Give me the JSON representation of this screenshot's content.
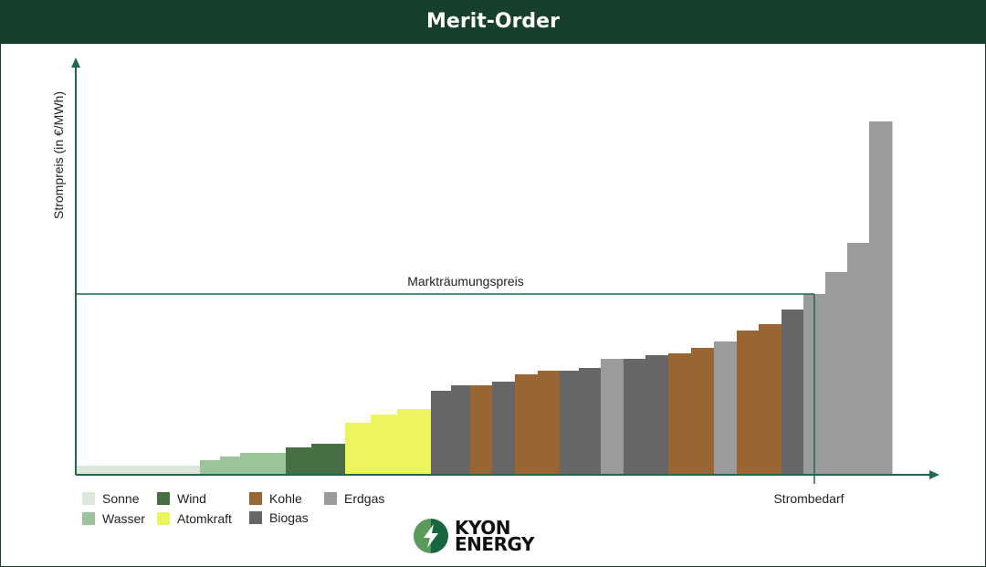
{
  "header": {
    "title": "Merit-Order"
  },
  "chart_data": {
    "type": "bar",
    "subtype": "merit-order step chart (variable-width bars)",
    "title": "Merit-Order",
    "ylabel": "Strompreis (in €/MWh)",
    "xlabel": "Strombedarf",
    "xlim": [
      0,
      945
    ],
    "ylim": [
      0,
      455
    ],
    "axis_ticks": "none",
    "grid": false,
    "legend_position": "bottom-left",
    "annotations": {
      "clearing_price_label": "Markträumungspreis",
      "clearing_price": 198,
      "demand": 809
    },
    "colors": {
      "Sonne": "#dde8dc",
      "Wasser": "#9dc39a",
      "Wind": "#476f43",
      "Atomkraft": "#ecf55e",
      "Kohle": "#996633",
      "Biogas": "#666666",
      "Erdgas": "#9b9b9b"
    },
    "legend": [
      "Sonne",
      "Wind",
      "Kohle",
      "Erdgas",
      "Wasser",
      "Atomkraft",
      "Biogas"
    ],
    "bars": [
      {
        "source": "Sonne",
        "capacity": 135,
        "price": 10
      },
      {
        "source": "Wasser",
        "capacity": 22,
        "price": 16
      },
      {
        "source": "Wasser",
        "capacity": 22,
        "price": 20
      },
      {
        "source": "Wasser",
        "capacity": 50,
        "price": 24
      },
      {
        "source": "Wind",
        "capacity": 28,
        "price": 30
      },
      {
        "source": "Wind",
        "capacity": 37,
        "price": 34
      },
      {
        "source": "Atomkraft",
        "capacity": 28,
        "price": 57
      },
      {
        "source": "Atomkraft",
        "capacity": 29,
        "price": 66
      },
      {
        "source": "Atomkraft",
        "capacity": 37,
        "price": 72
      },
      {
        "source": "Biogas",
        "capacity": 22,
        "price": 92
      },
      {
        "source": "Biogas",
        "capacity": 21,
        "price": 98
      },
      {
        "source": "Kohle",
        "capacity": 24,
        "price": 98
      },
      {
        "source": "Biogas",
        "capacity": 25,
        "price": 102
      },
      {
        "source": "Kohle",
        "capacity": 25,
        "price": 110
      },
      {
        "source": "Kohle",
        "capacity": 24,
        "price": 114
      },
      {
        "source": "Biogas",
        "capacity": 21,
        "price": 114
      },
      {
        "source": "Biogas",
        "capacity": 24,
        "price": 117
      },
      {
        "source": "Erdgas",
        "capacity": 25,
        "price": 127
      },
      {
        "source": "Biogas",
        "capacity": 24,
        "price": 127
      },
      {
        "source": "Biogas",
        "capacity": 25,
        "price": 131
      },
      {
        "source": "Kohle",
        "capacity": 25,
        "price": 133
      },
      {
        "source": "Kohle",
        "capacity": 25,
        "price": 139
      },
      {
        "source": "Erdgas",
        "capacity": 25,
        "price": 146
      },
      {
        "source": "Kohle",
        "capacity": 24,
        "price": 158
      },
      {
        "source": "Kohle",
        "capacity": 25,
        "price": 165
      },
      {
        "source": "Biogas",
        "capacity": 24,
        "price": 181
      },
      {
        "source": "Erdgas",
        "capacity": 24,
        "price": 198
      },
      {
        "source": "Erdgas",
        "capacity": 24,
        "price": 222
      },
      {
        "source": "Erdgas",
        "capacity": 24,
        "price": 254
      },
      {
        "source": "Erdgas",
        "capacity": 25,
        "price": 387
      }
    ]
  },
  "logo": {
    "line1": "KYON",
    "line2": "ENERGY"
  }
}
